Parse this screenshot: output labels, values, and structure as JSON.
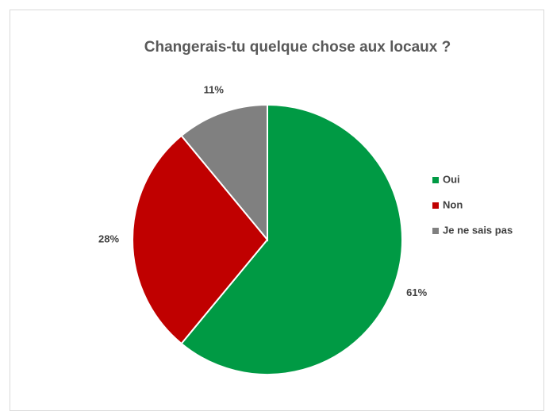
{
  "chart_data": {
    "type": "pie",
    "title": "Changerais-tu quelque chose aux locaux ?",
    "categories": [
      "Oui",
      "Non",
      "Je ne sais pas"
    ],
    "values": [
      61,
      28,
      11
    ],
    "value_labels": [
      "61%",
      "28%",
      "11%"
    ],
    "colors": [
      "#009a44",
      "#c00000",
      "#808080"
    ],
    "legend": "right"
  }
}
